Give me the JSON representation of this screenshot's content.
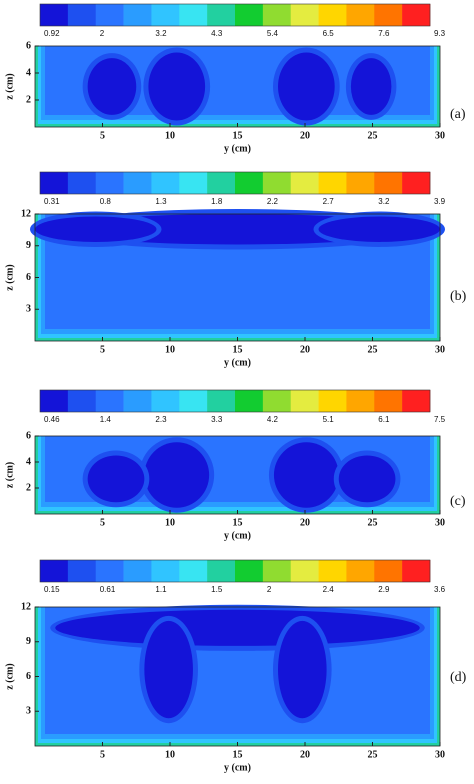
{
  "chart_data": [
    {
      "type": "contour",
      "panel_label": "(a)",
      "xlabel": "y (cm)",
      "ylabel": "z (cm)",
      "xlim": [
        0,
        30
      ],
      "xticks": [
        5,
        10,
        15,
        20,
        25,
        30
      ],
      "ylim": [
        0,
        6
      ],
      "yticks": [
        2,
        4,
        6
      ],
      "colorbar_ticks": [
        0.92,
        2,
        3.2,
        4.3,
        5.4,
        6.5,
        7.6,
        9.3
      ],
      "colors": [
        "#1414d8",
        "#1e50f0",
        "#2a74ff",
        "#2a9cff",
        "#30c4ff",
        "#38e4f2",
        "#22d0a0",
        "#12cc30",
        "#90dc30",
        "#e4ec40",
        "#ffd600",
        "#ffa600",
        "#ff7400",
        "#ff2020"
      ]
    },
    {
      "type": "contour",
      "panel_label": "(b)",
      "xlabel": "y (cm)",
      "ylabel": "z (cm)",
      "xlim": [
        0,
        30
      ],
      "xticks": [
        5,
        10,
        15,
        20,
        25,
        30
      ],
      "ylim": [
        0,
        12
      ],
      "yticks": [
        3,
        6,
        9,
        12
      ],
      "colorbar_ticks": [
        0.31,
        0.8,
        1.3,
        1.8,
        2.2,
        2.7,
        3.2,
        3.9
      ],
      "colors": [
        "#1414d8",
        "#1e50f0",
        "#2a74ff",
        "#2a9cff",
        "#30c4ff",
        "#38e4f2",
        "#22d0a0",
        "#12cc30",
        "#90dc30",
        "#e4ec40",
        "#ffd600",
        "#ffa600",
        "#ff7400",
        "#ff2020"
      ]
    },
    {
      "type": "contour",
      "panel_label": "(c)",
      "xlabel": "y (cm)",
      "ylabel": "z (cm)",
      "xlim": [
        0,
        30
      ],
      "xticks": [
        5,
        10,
        15,
        20,
        25,
        30
      ],
      "ylim": [
        0,
        6
      ],
      "yticks": [
        2,
        4,
        6
      ],
      "colorbar_ticks": [
        0.46,
        1.4,
        2.3,
        3.3,
        4.2,
        5.1,
        6.1,
        7.5
      ],
      "colors": [
        "#1414d8",
        "#1e50f0",
        "#2a74ff",
        "#2a9cff",
        "#30c4ff",
        "#38e4f2",
        "#22d0a0",
        "#12cc30",
        "#90dc30",
        "#e4ec40",
        "#ffd600",
        "#ffa600",
        "#ff7400",
        "#ff2020"
      ]
    },
    {
      "type": "contour",
      "panel_label": "(d)",
      "xlabel": "y (cm)",
      "ylabel": "z (cm)",
      "xlim": [
        0,
        30
      ],
      "xticks": [
        5,
        10,
        15,
        20,
        25,
        30
      ],
      "ylim": [
        0,
        12
      ],
      "yticks": [
        3,
        6,
        9,
        12
      ],
      "colorbar_ticks": [
        0.15,
        0.61,
        1.1,
        1.5,
        2,
        2.4,
        2.9,
        3.6
      ],
      "colors": [
        "#1414d8",
        "#1e50f0",
        "#2a74ff",
        "#2a9cff",
        "#30c4ff",
        "#38e4f2",
        "#22d0a0",
        "#12cc30",
        "#90dc30",
        "#e4ec40",
        "#ffd600",
        "#ffa600",
        "#ff7400",
        "#ff2020"
      ]
    }
  ]
}
